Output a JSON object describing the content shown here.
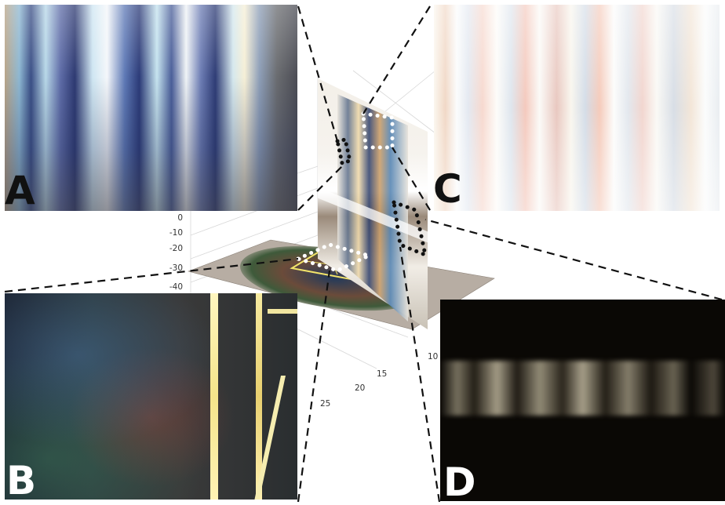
{
  "panels": {
    "a": {
      "label": "A"
    },
    "b": {
      "label": "B"
    },
    "c": {
      "label": "C"
    },
    "d": {
      "label": "D"
    }
  },
  "plot3d": {
    "z_ticks": [
      "0",
      "-10",
      "-20",
      "-30",
      "-40"
    ],
    "x_ticks": [
      "15",
      "20",
      "25"
    ],
    "y_ticks": [
      "10"
    ]
  },
  "colors": {
    "callout_line": "#111111",
    "region_marker": "#ffffff",
    "label_dark": "#111111",
    "label_light": "#ffffff"
  }
}
